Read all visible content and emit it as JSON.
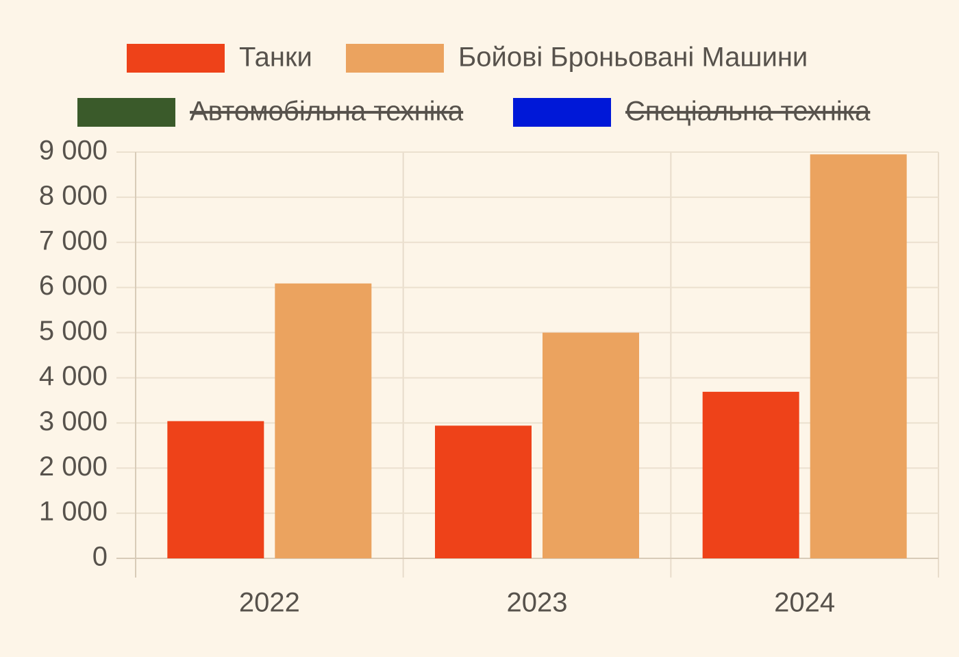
{
  "chart_data": {
    "type": "bar",
    "categories": [
      "2022",
      "2023",
      "2024"
    ],
    "series": [
      {
        "name": "Танки",
        "color": "#ee4219",
        "values": [
          3040,
          2940,
          3690
        ]
      },
      {
        "name": "Бойові Броньовані Машини",
        "color": "#eba35f",
        "values": [
          6090,
          5000,
          8950
        ]
      }
    ],
    "hidden_series": [
      {
        "name": "Автомобільна техніка",
        "color": "#3a5a2a"
      },
      {
        "name": "Спеціальна техніка",
        "color": "#0018d8"
      }
    ],
    "ylim": [
      0,
      9000
    ],
    "yticks": [
      0,
      {
        "value": 1000,
        "label": "1 000"
      },
      {
        "value": 2000,
        "label": "2 000"
      },
      {
        "value": 3000,
        "label": "3 000"
      },
      {
        "value": 4000,
        "label": "4 000"
      },
      {
        "value": 5000,
        "label": "5 000"
      },
      {
        "value": 6000,
        "label": "6 000"
      },
      {
        "value": 7000,
        "label": "7 000"
      },
      {
        "value": 8000,
        "label": "8 000"
      },
      {
        "value": 9000,
        "label": "9 000"
      }
    ],
    "grid": true,
    "legend": "top"
  }
}
